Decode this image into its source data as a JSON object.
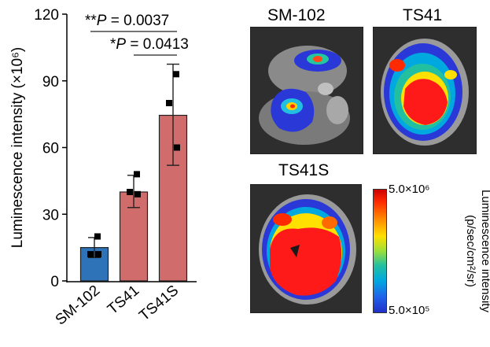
{
  "chart_data": {
    "type": "bar",
    "categories": [
      "SM-102",
      "TS41",
      "TS41S"
    ],
    "values": [
      15.0,
      40.0,
      74.5
    ],
    "errors_upper": [
      19.5,
      47.5,
      97.5
    ],
    "errors_lower": [
      10.5,
      33.0,
      52.0
    ],
    "points": [
      [
        20,
        12,
        12
      ],
      [
        48,
        40,
        39
      ],
      [
        93,
        80,
        60
      ]
    ],
    "bar_colors": [
      "#2e73b8",
      "#d06c6c",
      "#d06c6c"
    ],
    "ylabel": "Luminescence intensity (×10⁶)",
    "ylim": [
      0,
      120
    ],
    "yticks": [
      "0",
      "30",
      "60",
      "90",
      "120"
    ],
    "ytick_values": [
      0,
      30,
      60,
      90,
      120
    ],
    "significance": [
      {
        "from": 0,
        "to": 2,
        "stars": "**",
        "text": " = 0.0037"
      },
      {
        "from": 1,
        "to": 2,
        "stars": "*",
        "text": " = 0.0413"
      }
    ],
    "sig_symbol": "P"
  },
  "imaging": {
    "panels": [
      {
        "title": "SM-102"
      },
      {
        "title": "TS41"
      },
      {
        "title": "TS41S"
      }
    ],
    "colorbar": {
      "max_label": "5.0×10⁶",
      "min_label": "5.0×10⁵",
      "axis_title_line1": "Luminescence intensity",
      "axis_title_line2": "(p/sec/cm²/sr)"
    }
  },
  "colors": {
    "sm102": "#2e73b8",
    "ts41": "#d06c6c",
    "heat_red": "#ff1a1a",
    "heat_blue": "#2a38d8"
  }
}
